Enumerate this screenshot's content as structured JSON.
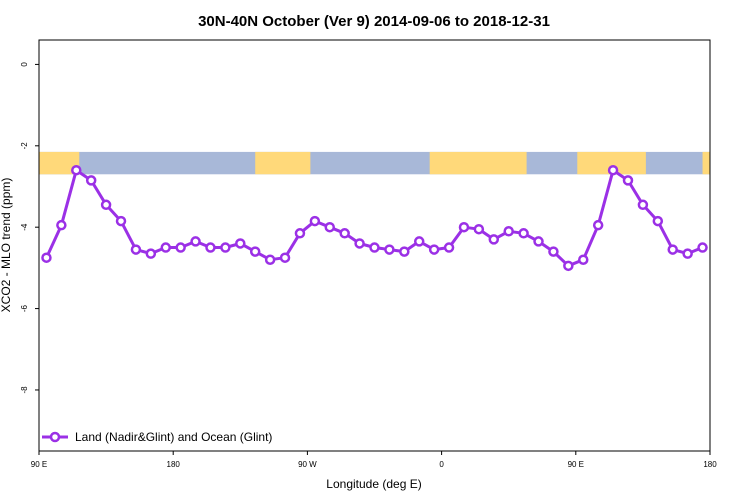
{
  "chart_data": {
    "type": "line",
    "title": "30N-40N October (Ver 9)   2014-09-06 to 2018-12-31",
    "xlabel": "Longitude (deg E)",
    "ylabel": "XCO2 - MLO trend (ppm)",
    "x_ticks": [
      {
        "value": 90,
        "label": "90 E"
      },
      {
        "value": 180,
        "label": "180"
      },
      {
        "value": 270,
        "label": "90 W"
      },
      {
        "value": 360,
        "label": "0"
      },
      {
        "value": 450,
        "label": "90 E"
      },
      {
        "value": 540,
        "label": "180"
      }
    ],
    "y_ticks": [
      0,
      -2,
      -4,
      -6,
      -8
    ],
    "xlim": [
      90,
      540
    ],
    "ylim": [
      -9.5,
      0.6
    ],
    "grid": false,
    "legend_position": "bottom-left",
    "colors": {
      "series": "#9b30e6",
      "land": "#ffd97a",
      "ocean": "#a8b8d8"
    },
    "land_mask_band": {
      "y_range": [
        -2.7,
        -2.15
      ]
    },
    "land_segments": [
      [
        90,
        117
      ],
      [
        235,
        272
      ],
      [
        352,
        417
      ],
      [
        451,
        497
      ],
      [
        535,
        540
      ]
    ],
    "series": [
      {
        "name": "Land (Nadir&Glint) and Ocean (Glint)",
        "x": [
          95,
          105,
          115,
          125,
          135,
          145,
          155,
          165,
          175,
          185,
          195,
          205,
          215,
          225,
          235,
          245,
          255,
          265,
          275,
          285,
          295,
          305,
          315,
          325,
          335,
          345,
          355,
          365,
          375,
          385,
          395,
          405,
          415,
          425,
          435,
          445,
          455,
          465,
          475,
          485,
          495,
          505,
          515,
          525,
          535
        ],
        "y": [
          -4.75,
          -3.95,
          -2.6,
          -2.85,
          -3.45,
          -3.85,
          -4.55,
          -4.65,
          -4.5,
          -4.5,
          -4.35,
          -4.5,
          -4.5,
          -4.4,
          -4.6,
          -4.8,
          -4.75,
          -4.15,
          -3.85,
          -4.0,
          -4.15,
          -4.4,
          -4.5,
          -4.55,
          -4.6,
          -4.35,
          -4.55,
          -4.5,
          -4.0,
          -4.05,
          -4.3,
          -4.1,
          -4.15,
          -4.35,
          -4.6,
          -4.95,
          -4.8,
          -3.95,
          -2.6,
          -2.85,
          -3.45,
          -3.85,
          -4.55,
          -4.65,
          -4.5
        ]
      }
    ]
  }
}
